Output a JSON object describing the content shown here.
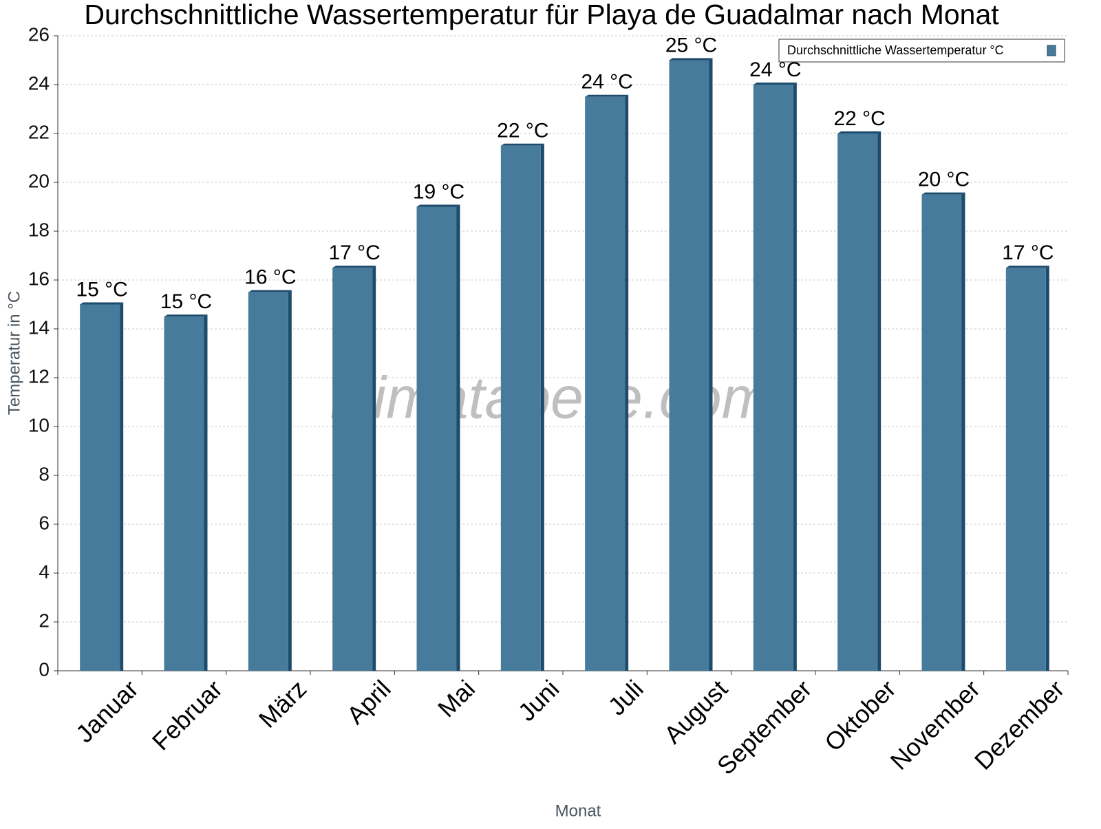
{
  "chart_data": {
    "type": "bar",
    "title": "Durchschnittliche Wassertemperatur für Playa de Guadalmar nach Monat",
    "x_label": "Monat",
    "y_label": "Temperatur in °C",
    "watermark": "klimatabelle.com",
    "categories": [
      "Januar",
      "Februar",
      "März",
      "April",
      "Mai",
      "Juni",
      "Juli",
      "August",
      "September",
      "Oktober",
      "November",
      "Dezember"
    ],
    "series": [
      {
        "name": "Durchschnittliche Wassertemperatur °C",
        "color": "#467b9c",
        "values": [
          15,
          14.5,
          15.5,
          16.5,
          19,
          21.5,
          23.5,
          25,
          24,
          22,
          19.5,
          16.5
        ],
        "value_labels": [
          "15 °C",
          "15 °C",
          "16 °C",
          "17 °C",
          "19 °C",
          "22 °C",
          "24 °C",
          "25 °C",
          "24 °C",
          "22 °C",
          "20 °C",
          "17 °C"
        ]
      }
    ],
    "ylim": [
      0,
      26
    ],
    "yticks": [
      0,
      2,
      4,
      6,
      8,
      10,
      12,
      14,
      16,
      18,
      20,
      22,
      24,
      26
    ],
    "grid": true,
    "legend": "upper right"
  }
}
